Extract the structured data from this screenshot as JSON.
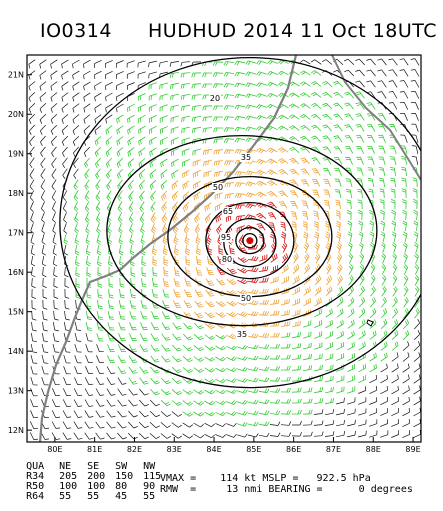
{
  "header": {
    "storm_id": "IO0314",
    "title": "HUDHUD 2014 11 Oct 18UTC"
  },
  "map": {
    "lon_ticks": [
      "80E",
      "81E",
      "82E",
      "83E",
      "84E",
      "85E",
      "86E",
      "87E",
      "88E",
      "89E"
    ],
    "lat_ticks": [
      "21N",
      "20N",
      "19N",
      "18N",
      "17N",
      "16N",
      "15N",
      "14N",
      "13N",
      "12N"
    ],
    "center": {
      "lon": 84.9,
      "lat": 16.8
    },
    "contour_labels": [
      "20",
      "35",
      "50",
      "65",
      "80",
      "95",
      "50",
      "35"
    ],
    "colors": {
      "gale": "#33cc33",
      "storm": "#f0a030",
      "hurricane": "#dd2222",
      "center": "#dd0000",
      "coast": "#808080",
      "border": "#000000"
    }
  },
  "table": {
    "headers": [
      "QUA",
      "NE",
      "SE",
      "SW",
      "NW"
    ],
    "rows": [
      [
        "R34",
        "205",
        "200",
        "150",
        "115"
      ],
      [
        "R50",
        "100",
        "100",
        "80",
        "90"
      ],
      [
        "R64",
        "55",
        "55",
        "45",
        "55"
      ]
    ]
  },
  "stats": {
    "line1": "VMAX =    114 kt MSLP =   922.5 hPa",
    "line2": "RMW  =     13 nmi BEARING =      0 degrees"
  }
}
